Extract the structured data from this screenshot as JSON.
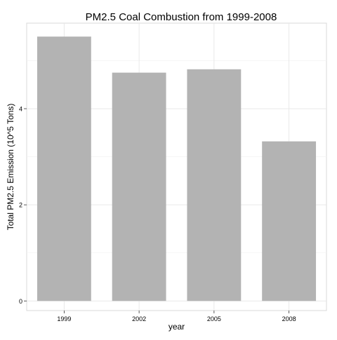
{
  "chart_data": {
    "type": "bar",
    "title": "PM2.5 Coal Combustion from 1999-2008",
    "xlabel": "year",
    "ylabel": "Total PM2.5 Emission (10^5 Tons)",
    "categories": [
      "1999",
      "2002",
      "2005",
      "2008"
    ],
    "values": [
      5.5,
      4.75,
      4.82,
      3.32
    ],
    "ylim": [
      -0.2,
      5.78
    ],
    "y_ticks": [
      0,
      2,
      4
    ],
    "y_tick_labels": [
      "0",
      "2",
      "4"
    ],
    "grid": true,
    "legend": "none",
    "colors": {
      "bar": "#b3b3b3",
      "grid_major": "#e6e6e6",
      "grid_minor": "#f2f2f2",
      "panel_border": "#d9d9d9",
      "text": "#000000"
    }
  }
}
